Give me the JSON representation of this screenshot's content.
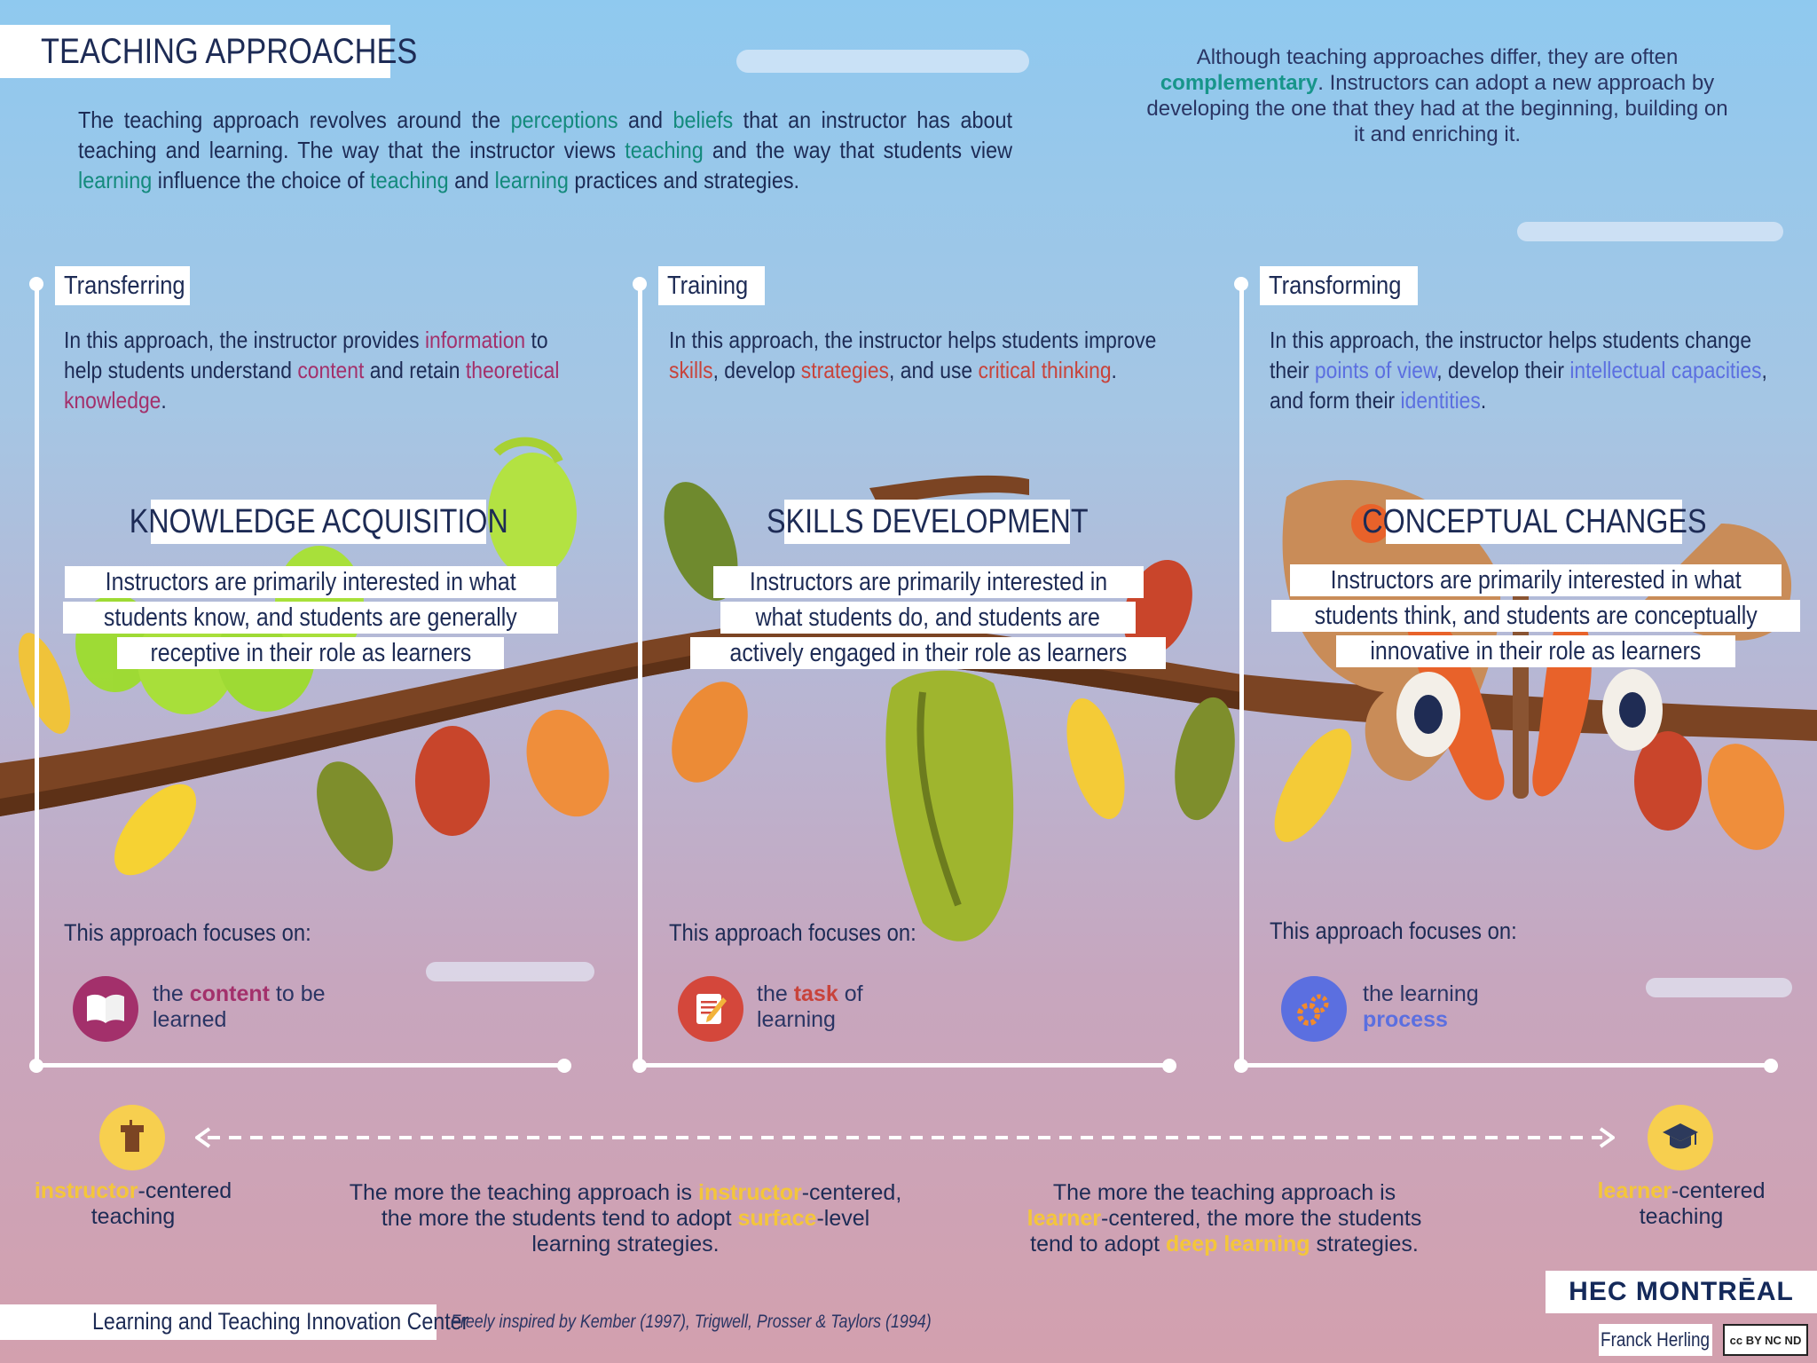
{
  "header": {
    "title": "TEACHING APPROACHES",
    "intro_parts": [
      {
        "t": "The teaching approach revolves around the ",
        "c": ""
      },
      {
        "t": "perceptions",
        "c": "hl-teal"
      },
      {
        "t": " and ",
        "c": ""
      },
      {
        "t": "beliefs",
        "c": "hl-teal"
      },
      {
        "t": " that an instructor has about teaching and learning. The way that the instructor views ",
        "c": ""
      },
      {
        "t": "teaching",
        "c": "hl-teal"
      },
      {
        "t": " and the way that students view ",
        "c": ""
      },
      {
        "t": "learning",
        "c": "hl-teal"
      },
      {
        "t": " influence the choice of ",
        "c": ""
      },
      {
        "t": "teaching",
        "c": "hl-teal"
      },
      {
        "t": " and ",
        "c": ""
      },
      {
        "t": "learning",
        "c": "hl-teal"
      },
      {
        "t": " practices and strategies.",
        "c": ""
      }
    ],
    "complement_pre": "Although teaching approaches differ, they are often",
    "complement_bold": "complementary",
    "complement_post": ". Instructors can adopt a new approach by developing the one that they had at the beginning, building on it and enriching it."
  },
  "columns": [
    {
      "tag": "Transferring",
      "desc_parts": [
        {
          "t": "In this approach, the instructor provides ",
          "c": ""
        },
        {
          "t": "information",
          "c": "c-mag"
        },
        {
          "t": " to help students understand ",
          "c": ""
        },
        {
          "t": "content",
          "c": "c-mag"
        },
        {
          "t": " and retain ",
          "c": ""
        },
        {
          "t": "theoretical knowledge",
          "c": "c-mag"
        },
        {
          "t": ".",
          "c": ""
        }
      ],
      "big_title": "KNOWLEDGE ACQUISITION",
      "sub_lines": [
        "Instructors are primarily interested in what",
        "students know, and students are generally",
        "receptive in their role as learners"
      ],
      "focus_label": "This approach focuses on:",
      "focus_pre": "the ",
      "focus_bold": "content",
      "focus_post": " to be learned",
      "focus_icon": "open-book-icon"
    },
    {
      "tag": "Training",
      "desc_parts": [
        {
          "t": "In this approach, the instructor helps students improve ",
          "c": ""
        },
        {
          "t": "skills",
          "c": "c-red"
        },
        {
          "t": ", develop ",
          "c": ""
        },
        {
          "t": "strategies",
          "c": "c-red"
        },
        {
          "t": ", and use ",
          "c": ""
        },
        {
          "t": "critical thinking",
          "c": "c-red"
        },
        {
          "t": ".",
          "c": ""
        }
      ],
      "big_title": "SKILLS DEVELOPMENT",
      "sub_lines": [
        "Instructors are primarily interested in",
        "what students do, and students are",
        "actively engaged in their role as learners"
      ],
      "focus_label": "This approach focuses on:",
      "focus_pre": "the ",
      "focus_bold": "task",
      "focus_post": " of learning",
      "focus_icon": "notepad-pencil-icon"
    },
    {
      "tag": "Transforming",
      "desc_parts": [
        {
          "t": "In this approach, the instructor helps students change their ",
          "c": ""
        },
        {
          "t": "points of view",
          "c": "c-blu"
        },
        {
          "t": ", develop their ",
          "c": ""
        },
        {
          "t": "intellectual capacities",
          "c": "c-blu"
        },
        {
          "t": ", and form their ",
          "c": ""
        },
        {
          "t": "identities",
          "c": "c-blu"
        },
        {
          "t": ".",
          "c": ""
        }
      ],
      "big_title": "CONCEPTUAL CHANGES",
      "sub_lines": [
        "Instructors are primarily interested in what",
        "students think, and students are conceptually",
        "innovative in their role as learners"
      ],
      "focus_label": "This approach focuses on:",
      "focus_pre": "the learning ",
      "focus_bold": "process",
      "focus_post": "",
      "focus_icon": "gears-icon"
    }
  ],
  "bottom": {
    "left_bold": "instructor",
    "left_rest": "-centered teaching",
    "right_bold": "learner",
    "right_rest": "-centered teaching",
    "mid_left": [
      "The more the teaching approach is ",
      "instructor",
      "-centered, the more the students tend to adopt ",
      "surface",
      "-level learning strategies."
    ],
    "mid_right": [
      "The more the teaching approach is ",
      "learner",
      "-centered, the more the students tend to adopt ",
      "deep learning",
      " strategies."
    ]
  },
  "footer": {
    "center": "Learning and Teaching Innovation Center",
    "credit": "Freely inspired by Kember (1997), Trigwell, Prosser & Taylors (1994)",
    "brand": "HEC MONTRĒAL",
    "author": "Franck Herling",
    "license": "cc BY NC ND"
  },
  "colors": {
    "accent_teal": "#138a7c",
    "magenta": "#a3306b",
    "red": "#c8433b",
    "periwinkle": "#5b6fe0",
    "yellow": "#f4c63a",
    "navy": "#1d2b55"
  }
}
